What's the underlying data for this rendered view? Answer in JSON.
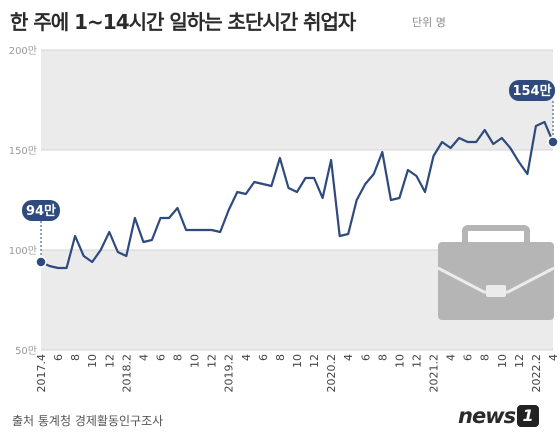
{
  "header": {
    "title": "한 주에 1~14시간 일하는 초단시간 취업자",
    "unit": "단위 명"
  },
  "footer": {
    "source": "출처  통계청 경제활동인구조사",
    "logo_word": "news",
    "logo_number": "1"
  },
  "colors": {
    "line": "#2f4a7c",
    "band": "#ebebeb",
    "grid": "#d6d6d6",
    "callout": "#2f4a7c",
    "icon": "#b5b5b5"
  },
  "icon": "briefcase-icon",
  "chart_data": {
    "type": "line",
    "title": "한 주에 1~14시간 일하는 초단시간 취업자",
    "ylim": [
      50,
      200
    ],
    "yticks": [
      50,
      100,
      150,
      200
    ],
    "ytick_labels": [
      "50만",
      "100만",
      "150만",
      "200만"
    ],
    "xtick_labels": [
      "2017.4",
      "6",
      "8",
      "10",
      "12",
      "2018.2",
      "4",
      "6",
      "8",
      "10",
      "12",
      "2019.2",
      "4",
      "6",
      "8",
      "10",
      "12",
      "2020.2",
      "4",
      "6",
      "8",
      "10",
      "12",
      "2021.2",
      "4",
      "6",
      "8",
      "10",
      "12",
      "2022.2",
      "4"
    ],
    "grid": true,
    "series": [
      {
        "values": [
          94,
          92,
          91,
          91,
          107,
          97,
          94,
          100,
          109,
          99,
          97,
          116,
          104,
          105,
          116,
          116,
          121,
          110,
          110,
          110,
          110,
          109,
          120,
          129,
          128,
          134,
          133,
          132,
          146,
          131,
          129,
          136,
          136,
          126,
          145,
          107,
          108,
          125,
          133,
          138,
          149,
          125,
          126,
          140,
          137,
          129,
          147,
          154,
          151,
          156,
          154,
          154,
          160,
          153,
          156,
          151,
          144,
          138,
          162,
          164,
          154
        ]
      }
    ],
    "annotations": [
      {
        "label": "94만",
        "index": 0,
        "value": 94
      },
      {
        "label": "154만",
        "index": 60,
        "value": 154
      }
    ]
  }
}
